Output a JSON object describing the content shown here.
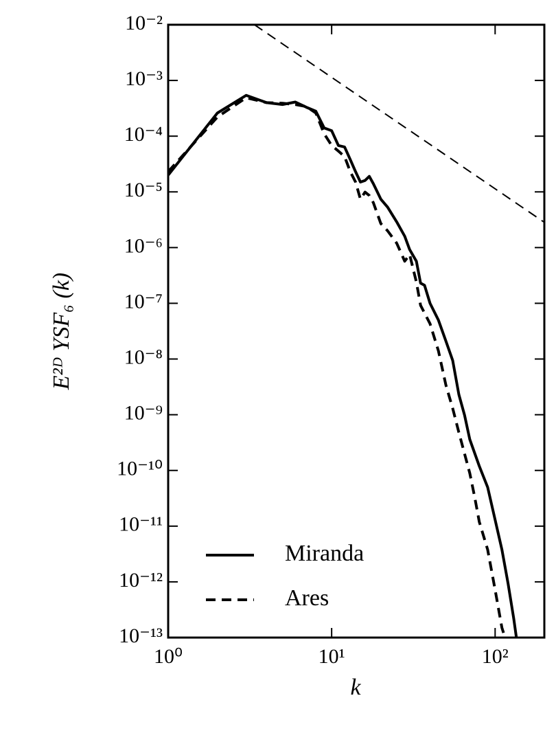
{
  "chart_data": {
    "type": "line",
    "xlabel": "k",
    "ylabel": "E²ᴰ YSF₆ (k)",
    "xscale": "log",
    "yscale": "log",
    "xlim": [
      1,
      200
    ],
    "ylim": [
      1e-13,
      0.01
    ],
    "xticks": [
      {
        "value": 1,
        "label": "10⁰"
      },
      {
        "value": 10,
        "label": "10¹"
      },
      {
        "value": 100,
        "label": "10²"
      }
    ],
    "yticks": [
      {
        "value": 0.01,
        "label": "10⁻²"
      },
      {
        "value": 0.001,
        "label": "10⁻³"
      },
      {
        "value": 0.0001,
        "label": "10⁻⁴"
      },
      {
        "value": 1e-05,
        "label": "10⁻⁵"
      },
      {
        "value": 1e-06,
        "label": "10⁻⁶"
      },
      {
        "value": 1e-07,
        "label": "10⁻⁷"
      },
      {
        "value": 1e-08,
        "label": "10⁻⁸"
      },
      {
        "value": 1e-09,
        "label": "10⁻⁹"
      },
      {
        "value": 1e-10,
        "label": "10⁻¹⁰"
      },
      {
        "value": 1e-11,
        "label": "10⁻¹¹"
      },
      {
        "value": 1e-12,
        "label": "10⁻¹²"
      },
      {
        "value": 1e-13,
        "label": "10⁻¹³"
      }
    ],
    "legend": "lower left",
    "series": [
      {
        "name": "Miranda",
        "color": "#000000",
        "dash": "solid",
        "x": [
          1,
          2,
          3,
          4,
          5,
          6,
          7,
          8,
          9,
          10,
          11,
          12,
          13,
          14,
          15,
          16,
          17,
          18,
          20,
          22,
          25,
          28,
          30,
          33,
          35,
          37,
          40,
          45,
          50,
          55,
          60,
          65,
          70,
          80,
          90,
          100,
          110,
          120,
          130,
          135
        ],
        "values": [
          2e-05,
          0.00026,
          0.00054,
          0.0004,
          0.00037,
          0.00041,
          0.00033,
          0.00028,
          0.00014,
          0.000125,
          6.8e-05,
          6.4e-05,
          3.8e-05,
          2.3e-05,
          1.5e-05,
          1.6e-05,
          1.9e-05,
          1.4e-05,
          7.4e-06,
          5.3e-06,
          2.9e-06,
          1.6e-06,
          9.2e-07,
          5.7e-07,
          2.3e-07,
          2.1e-07,
          1e-07,
          5e-08,
          2.1e-08,
          9.4e-09,
          2.3e-09,
          9.8e-10,
          3.6e-10,
          1.2e-10,
          5e-11,
          1.3e-11,
          3.8e-12,
          9.3e-13,
          2.2e-13,
          1e-13
        ]
      },
      {
        "name": "Ares",
        "color": "#000000",
        "dash": "dashed",
        "x": [
          1,
          2,
          3,
          4,
          5,
          6,
          7,
          8,
          9,
          10,
          11,
          12,
          13,
          14,
          15,
          16,
          17,
          18,
          20,
          22,
          25,
          28,
          30,
          33,
          35,
          40,
          45,
          50,
          55,
          60,
          70,
          75,
          80,
          90,
          100,
          110,
          115
        ],
        "values": [
          2.3e-05,
          0.00022,
          0.00049,
          0.0004,
          0.00039,
          0.00037,
          0.00034,
          0.00026,
          0.00011,
          6.8e-05,
          5.4e-05,
          4.3e-05,
          2.3e-05,
          1.5e-05,
          7.4e-06,
          9.9e-06,
          8.6e-06,
          6.4e-06,
          2.7e-06,
          2e-06,
          1.2e-06,
          5.7e-07,
          7.5e-07,
          2.4e-07,
          9.2e-08,
          4.3e-08,
          1.4e-08,
          3.4e-09,
          1.3e-09,
          4.8e-10,
          8.9e-11,
          3.3e-11,
          1.2e-11,
          3.8e-12,
          7.2e-13,
          1.5e-13,
          1e-13
        ]
      }
    ],
    "reference_line": {
      "color": "#000000",
      "dash": "dashed",
      "x": [
        3.37,
        200
      ],
      "values": [
        0.01,
        2.84e-06
      ]
    }
  }
}
